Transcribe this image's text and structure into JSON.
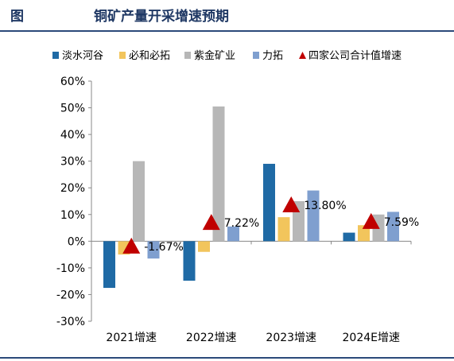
{
  "header": {
    "figure_label": "图",
    "title": "铜矿产量开采增速预期"
  },
  "chart_data": {
    "type": "bar",
    "categories": [
      "2021增速",
      "2022增速",
      "2023增速",
      "2024E增速"
    ],
    "series": [
      {
        "name": "淡水河谷",
        "color": "#1f6aa5",
        "values": [
          -17.5,
          -14.8,
          29,
          3.2
        ]
      },
      {
        "name": "必和必拓",
        "color": "#f2c55c",
        "values": [
          -5,
          -4,
          9,
          6
        ]
      },
      {
        "name": "紫金矿业",
        "color": "#b7b7b7",
        "values": [
          30,
          50.5,
          15,
          10
        ]
      },
      {
        "name": "力拓",
        "color": "#7f9fcf",
        "values": [
          -6.5,
          5.5,
          19,
          11
        ]
      }
    ],
    "total_series": {
      "name": "四家公司合计值增速",
      "color": "#c00000",
      "marker": "triangle",
      "values": [
        -1.67,
        7.22,
        13.8,
        7.59
      ],
      "labels": [
        "-1.67%",
        "7.22%",
        "13.80%",
        "7.59%"
      ]
    },
    "ylim": [
      -30,
      60
    ],
    "yticks": [
      -30,
      -20,
      -10,
      0,
      10,
      20,
      30,
      40,
      50,
      60
    ],
    "ytick_labels": [
      "-30%",
      "-20%",
      "-10%",
      "0%",
      "10%",
      "20%",
      "30%",
      "40%",
      "50%",
      "60%"
    ],
    "legend_position": "top",
    "grid": false
  }
}
